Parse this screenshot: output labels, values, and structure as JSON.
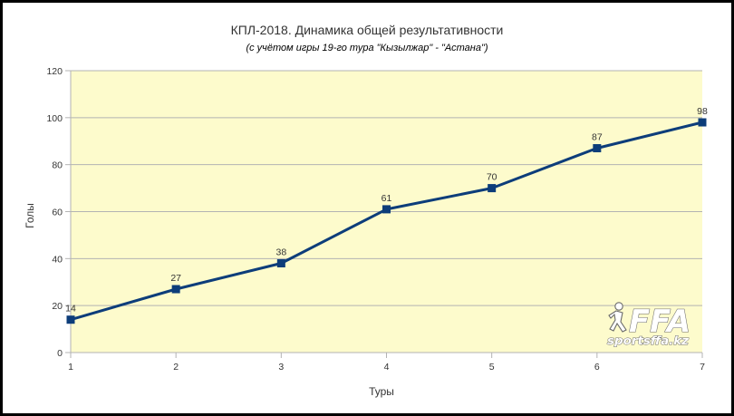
{
  "chart_data": {
    "type": "line",
    "title": "КПЛ-2018. Динамика общей результативности",
    "subtitle": "(с учётом игры 19-го тура \"Кызылжар\" - \"Астана\")",
    "xlabel": "Туры",
    "ylabel": "Голы",
    "x": [
      1,
      2,
      3,
      4,
      5,
      6,
      7
    ],
    "values": [
      14,
      27,
      38,
      61,
      70,
      87,
      98
    ],
    "ylim": [
      0,
      120
    ],
    "yticks": [
      0,
      20,
      40,
      60,
      80,
      100,
      120
    ],
    "xlim": [
      1,
      7
    ],
    "grid": true,
    "legend": "none",
    "colors": {
      "line": "#0d3d7a",
      "plot_background": "#fdfbcc",
      "grid": "#b3b3b3"
    }
  },
  "watermark": {
    "logo_text": "FFA",
    "site": "sportsffa.kz"
  }
}
